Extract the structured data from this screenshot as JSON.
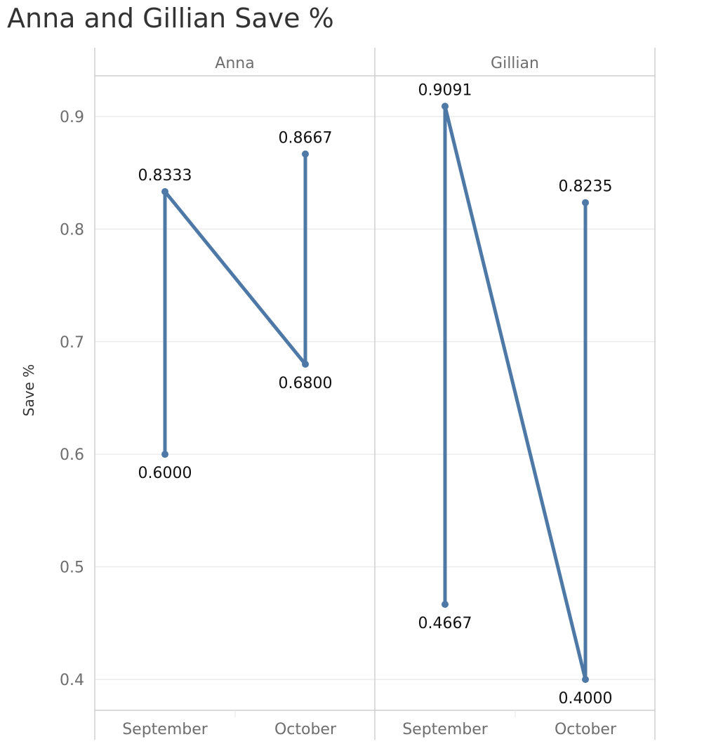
{
  "title": "Anna and Gillian Save %",
  "chart_data": {
    "type": "line",
    "title": "Anna and Gillian Save %",
    "ylabel": "Save %",
    "xlabel": "",
    "ylim": [
      0.37,
      0.96
    ],
    "yticks": [
      0.4,
      0.5,
      0.6,
      0.7,
      0.8,
      0.9
    ],
    "ytick_labels": [
      "0.4",
      "0.5",
      "0.6",
      "0.7",
      "0.8",
      "0.9"
    ],
    "grid": true,
    "categories": [
      "September",
      "October"
    ],
    "line_color": "#4e79a7",
    "panels": [
      {
        "name": "Anna",
        "points": [
          {
            "x": "September",
            "y": 0.6,
            "label": "0.6000"
          },
          {
            "x": "September",
            "y": 0.8333,
            "label": "0.8333"
          },
          {
            "x": "October",
            "y": 0.68,
            "label": "0.6800"
          },
          {
            "x": "October",
            "y": 0.8667,
            "label": "0.8667"
          }
        ]
      },
      {
        "name": "Gillian",
        "points": [
          {
            "x": "September",
            "y": 0.4667,
            "label": "0.4667"
          },
          {
            "x": "September",
            "y": 0.9091,
            "label": "0.9091"
          },
          {
            "x": "October",
            "y": 0.4,
            "label": "0.4000"
          },
          {
            "x": "October",
            "y": 0.8235,
            "label": "0.8235"
          }
        ]
      }
    ]
  }
}
